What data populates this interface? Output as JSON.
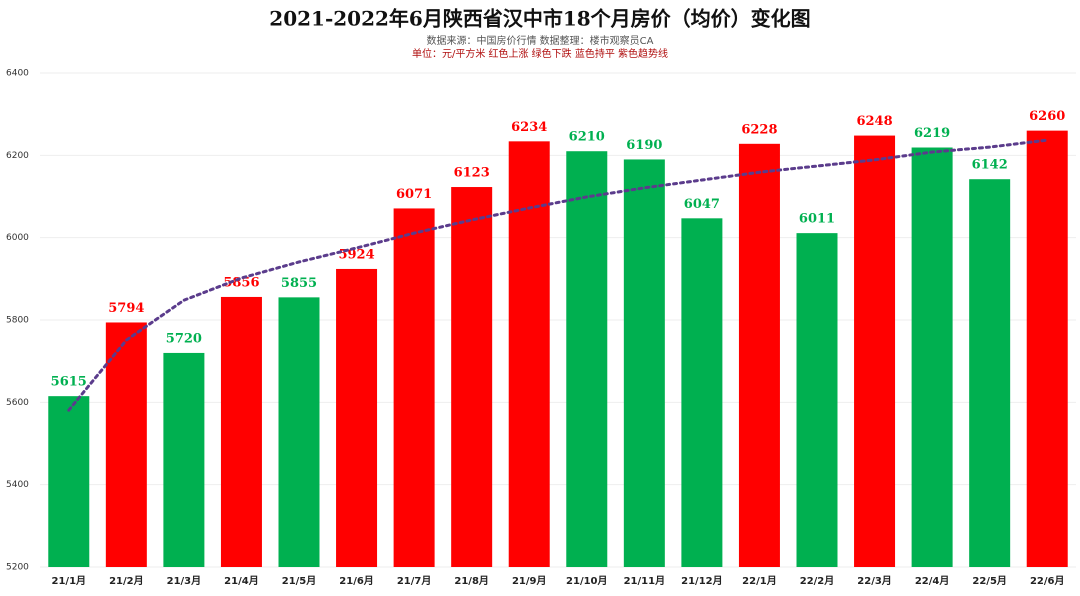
{
  "chart_data": {
    "type": "bar",
    "title": "2021-2022年6月陕西省汉中市18个月房价（均价）变化图",
    "subtitle": "数据来源：中国房价行情     数据整理：楼市观察员CA",
    "note": "单位：元/平方米     红色上涨     绿色下跌     蓝色持平     紫色趋势线",
    "categories": [
      "21/1月",
      "21/2月",
      "21/3月",
      "21/4月",
      "21/5月",
      "21/6月",
      "21/7月",
      "21/8月",
      "21/9月",
      "21/10月",
      "21/11月",
      "21/12月",
      "22/1月",
      "22/2月",
      "22/3月",
      "22/4月",
      "22/5月",
      "22/6月"
    ],
    "values": [
      5615,
      5794,
      5720,
      5856,
      5855,
      5924,
      6071,
      6123,
      6234,
      6210,
      6190,
      6047,
      6228,
      6011,
      6248,
      6219,
      6142,
      6260
    ],
    "colors": [
      "#00b050",
      "#ff0000",
      "#00b050",
      "#ff0000",
      "#00b050",
      "#ff0000",
      "#ff0000",
      "#ff0000",
      "#ff0000",
      "#00b050",
      "#00b050",
      "#00b050",
      "#ff0000",
      "#00b050",
      "#ff0000",
      "#00b050",
      "#00b050",
      "#ff0000"
    ],
    "trend": {
      "color": "#5b3c8c",
      "values": [
        5581,
        5751,
        5848,
        5902,
        5941,
        5975,
        6011,
        6043,
        6072,
        6099,
        6121,
        6140,
        6159,
        6174,
        6189,
        6208,
        6220,
        6237
      ]
    },
    "ylim": [
      5200,
      6400
    ],
    "yticks": [
      5200,
      5400,
      5600,
      5800,
      6000,
      6200,
      6400
    ],
    "grid": true
  }
}
